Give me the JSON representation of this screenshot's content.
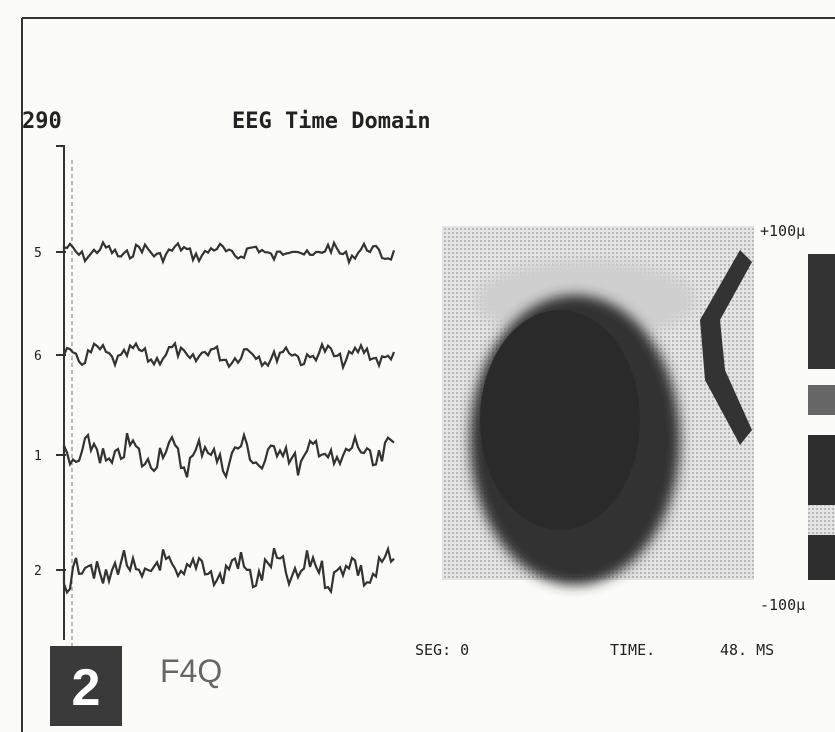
{
  "header": {
    "value": "290",
    "title": "EEG Time Domain"
  },
  "channels": [
    "5",
    "6",
    "1",
    "2"
  ],
  "scale": {
    "max": "+100µ",
    "min": "-100µ"
  },
  "status": {
    "seg": "SEG: 0",
    "time": "TIME.",
    "ms": "48. MS"
  },
  "panel": {
    "number": "2",
    "label": "F4Q"
  }
}
